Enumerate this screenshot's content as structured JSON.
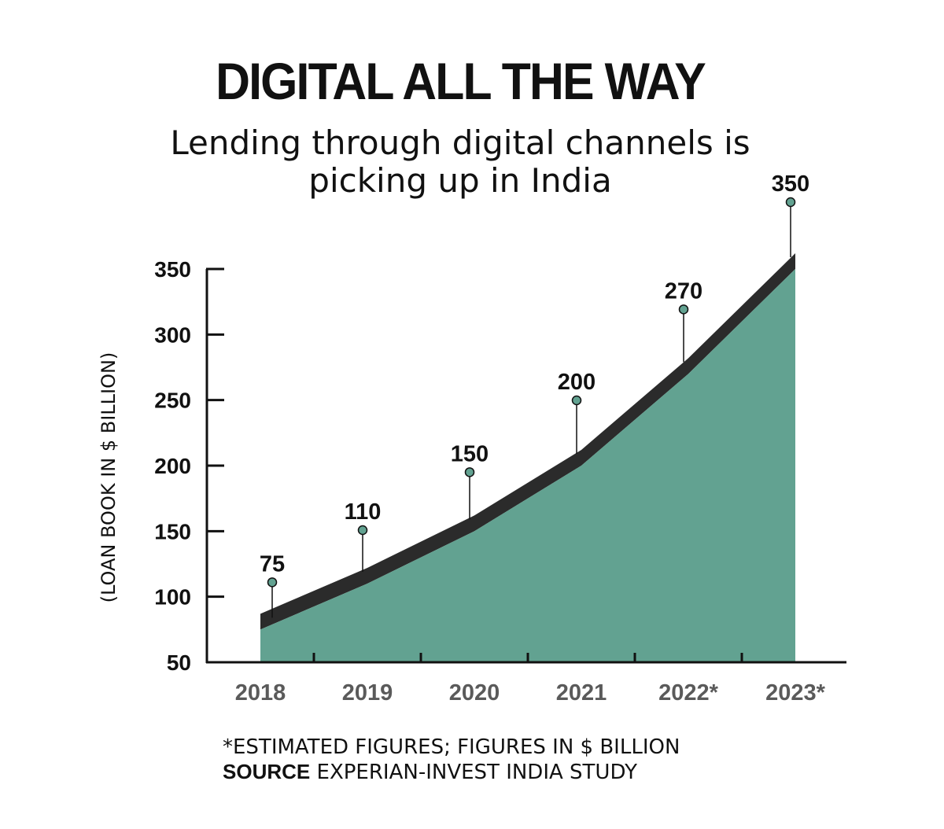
{
  "header": {
    "title": "DIGITAL ALL THE WAY",
    "subtitle_line1": "Lending through digital channels is",
    "subtitle_line2": "picking up in India"
  },
  "footer": {
    "note": "*ESTIMATED FIGURES; FIGURES IN $ BILLION",
    "source_label": "SOURCE",
    "source_text": " EXPERIAN-INVEST INDIA STUDY"
  },
  "colors": {
    "area_fill": "#62a291",
    "top_band": "#2b2b2b",
    "marker_fill": "#62a291",
    "axis": "#111111",
    "tick_label": "#5a5a5a"
  },
  "chart_data": {
    "type": "area",
    "title": "DIGITAL ALL THE WAY",
    "subtitle": "Lending through digital channels is picking up in India",
    "ylabel": "(LOAN BOOK IN $ BILLION)",
    "xlabel": "",
    "categories": [
      "2018",
      "2019",
      "2020",
      "2021",
      "2022*",
      "2023*"
    ],
    "values": [
      75,
      110,
      150,
      200,
      270,
      350
    ],
    "data_labels": [
      "75",
      "110",
      "150",
      "200",
      "270",
      "350"
    ],
    "ylim": [
      50,
      350
    ],
    "yticks": [
      50,
      100,
      150,
      200,
      250,
      300,
      350
    ],
    "ytick_labels": [
      "50",
      "100",
      "150",
      "200",
      "250",
      "300",
      "350"
    ],
    "grid": false,
    "legend": "none"
  }
}
